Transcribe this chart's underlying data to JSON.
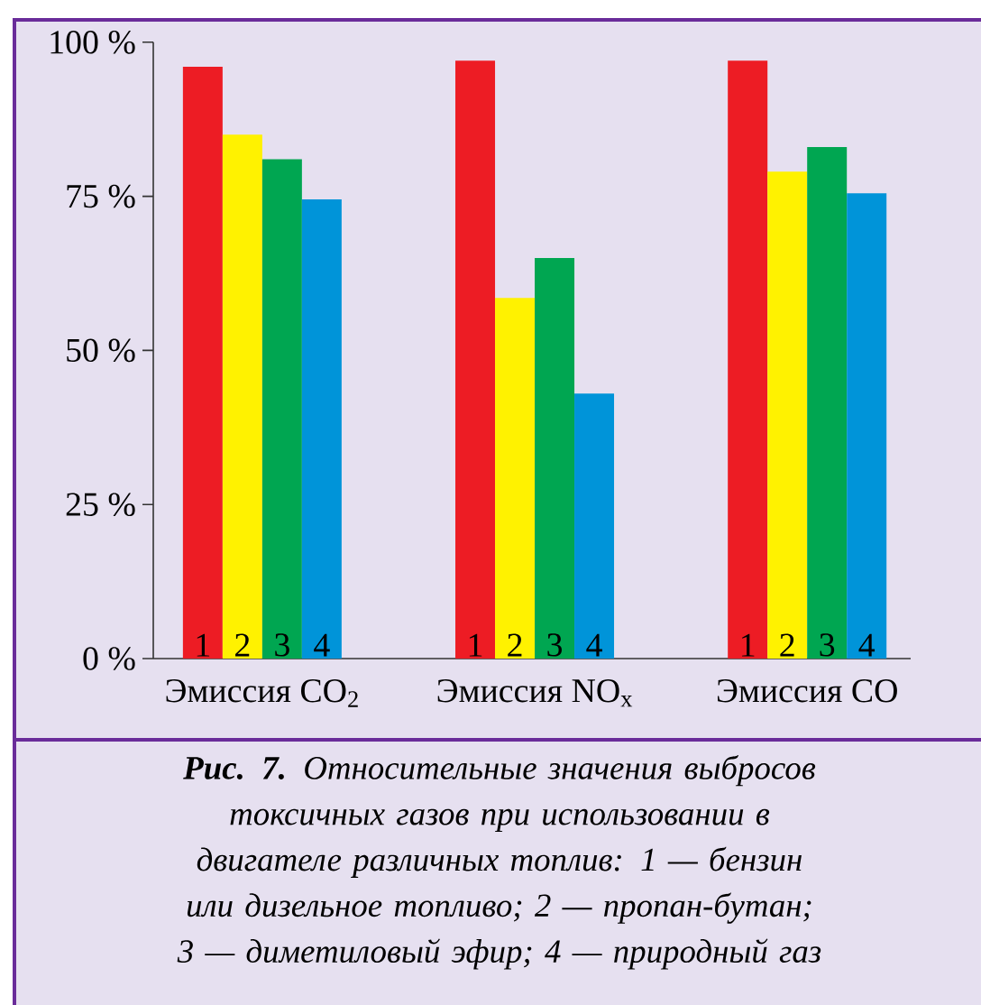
{
  "chart_data": {
    "type": "bar",
    "categories": [
      "Эмиссия CO$_{2}$",
      "Эмиссия NO$_{x}$",
      "Эмиссия CO"
    ],
    "series": [
      {
        "name": "1",
        "color": "#ed1c24",
        "values": [
          96,
          97,
          97
        ]
      },
      {
        "name": "2",
        "color": "#fff200",
        "values": [
          85,
          58.5,
          79
        ]
      },
      {
        "name": "3",
        "color": "#00a651",
        "values": [
          81,
          65,
          83
        ]
      },
      {
        "name": "4",
        "color": "#0094d9",
        "values": [
          74.5,
          43,
          75.5
        ]
      }
    ],
    "ylim": [
      0,
      100
    ],
    "yticks": [
      {
        "value": 0,
        "label": "0 %"
      },
      {
        "value": 25,
        "label": "25 %"
      },
      {
        "value": 50,
        "label": "50 %"
      },
      {
        "value": 75,
        "label": "75 %"
      },
      {
        "value": 100,
        "label": "100 %"
      }
    ],
    "annotations": [
      "**Рис. 7.** Относительные значения выбросов токсичных газов при использовании в двигателе различных топлив: 1 — бензин или дизельное топливо; 2 — пропан-бутан; 3 — диметиловый эфир; 4 — природный газ"
    ]
  }
}
